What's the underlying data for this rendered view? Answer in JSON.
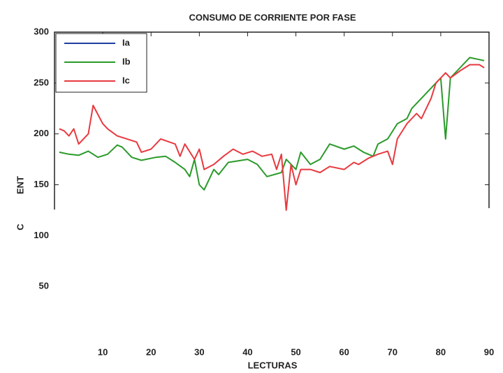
{
  "chart_data": {
    "type": "line",
    "title": "CONSUMO DE CORRIENTE POR FASE",
    "xlabel": "LECTURAS",
    "ylabel_fragments": [
      "ENT",
      "C"
    ],
    "xlim": [
      0,
      90
    ],
    "xticks": [
      10,
      20,
      30,
      40,
      50,
      60,
      70,
      80,
      90
    ],
    "ylim": [
      0,
      300
    ],
    "yticks": [
      50,
      100,
      150,
      200,
      250,
      300
    ],
    "legend": "upper left",
    "series": [
      {
        "name": "Ia",
        "color": "#1f3fa0",
        "x": [
          1
        ],
        "values": [
          null
        ]
      },
      {
        "name": "Ib",
        "color": "#2a9a2a",
        "x": [
          1,
          3,
          5,
          7,
          9,
          11,
          13,
          14,
          16,
          18,
          21,
          23,
          25,
          27,
          28,
          29,
          30,
          31,
          33,
          34,
          36,
          40,
          42,
          44,
          47,
          48,
          50,
          51,
          53,
          55,
          57,
          60,
          62,
          64,
          66,
          67,
          69,
          71,
          73,
          74,
          77,
          79,
          80,
          81,
          82,
          84,
          86,
          88,
          89
        ],
        "values": [
          182,
          180,
          179,
          183,
          177,
          180,
          189,
          187,
          177,
          174,
          177,
          178,
          172,
          165,
          158,
          175,
          150,
          145,
          165,
          160,
          172,
          175,
          170,
          158,
          162,
          175,
          165,
          182,
          170,
          175,
          190,
          185,
          188,
          182,
          178,
          190,
          195,
          210,
          215,
          225,
          240,
          250,
          255,
          195,
          255,
          265,
          275,
          273,
          272
        ]
      },
      {
        "name": "Ic",
        "color": "#e8393f",
        "x": [
          1,
          2,
          3,
          4,
          5,
          7,
          8,
          10,
          11,
          13,
          15,
          17,
          18,
          20,
          22,
          25,
          26,
          27,
          29,
          30,
          31,
          33,
          35,
          37,
          39,
          41,
          43,
          45,
          46,
          47,
          48,
          49,
          50,
          51,
          53,
          55,
          57,
          60,
          62,
          63,
          65,
          67,
          69,
          70,
          71,
          73,
          75,
          76,
          78,
          79,
          81,
          82,
          84,
          86,
          88,
          89
        ],
        "values": [
          205,
          203,
          198,
          205,
          190,
          200,
          228,
          210,
          205,
          198,
          195,
          192,
          182,
          185,
          195,
          190,
          178,
          190,
          175,
          185,
          165,
          170,
          178,
          185,
          180,
          183,
          178,
          180,
          165,
          180,
          125,
          170,
          150,
          165,
          165,
          162,
          168,
          165,
          172,
          170,
          176,
          180,
          183,
          170,
          195,
          210,
          220,
          215,
          235,
          250,
          260,
          255,
          262,
          268,
          268,
          265
        ]
      }
    ]
  }
}
